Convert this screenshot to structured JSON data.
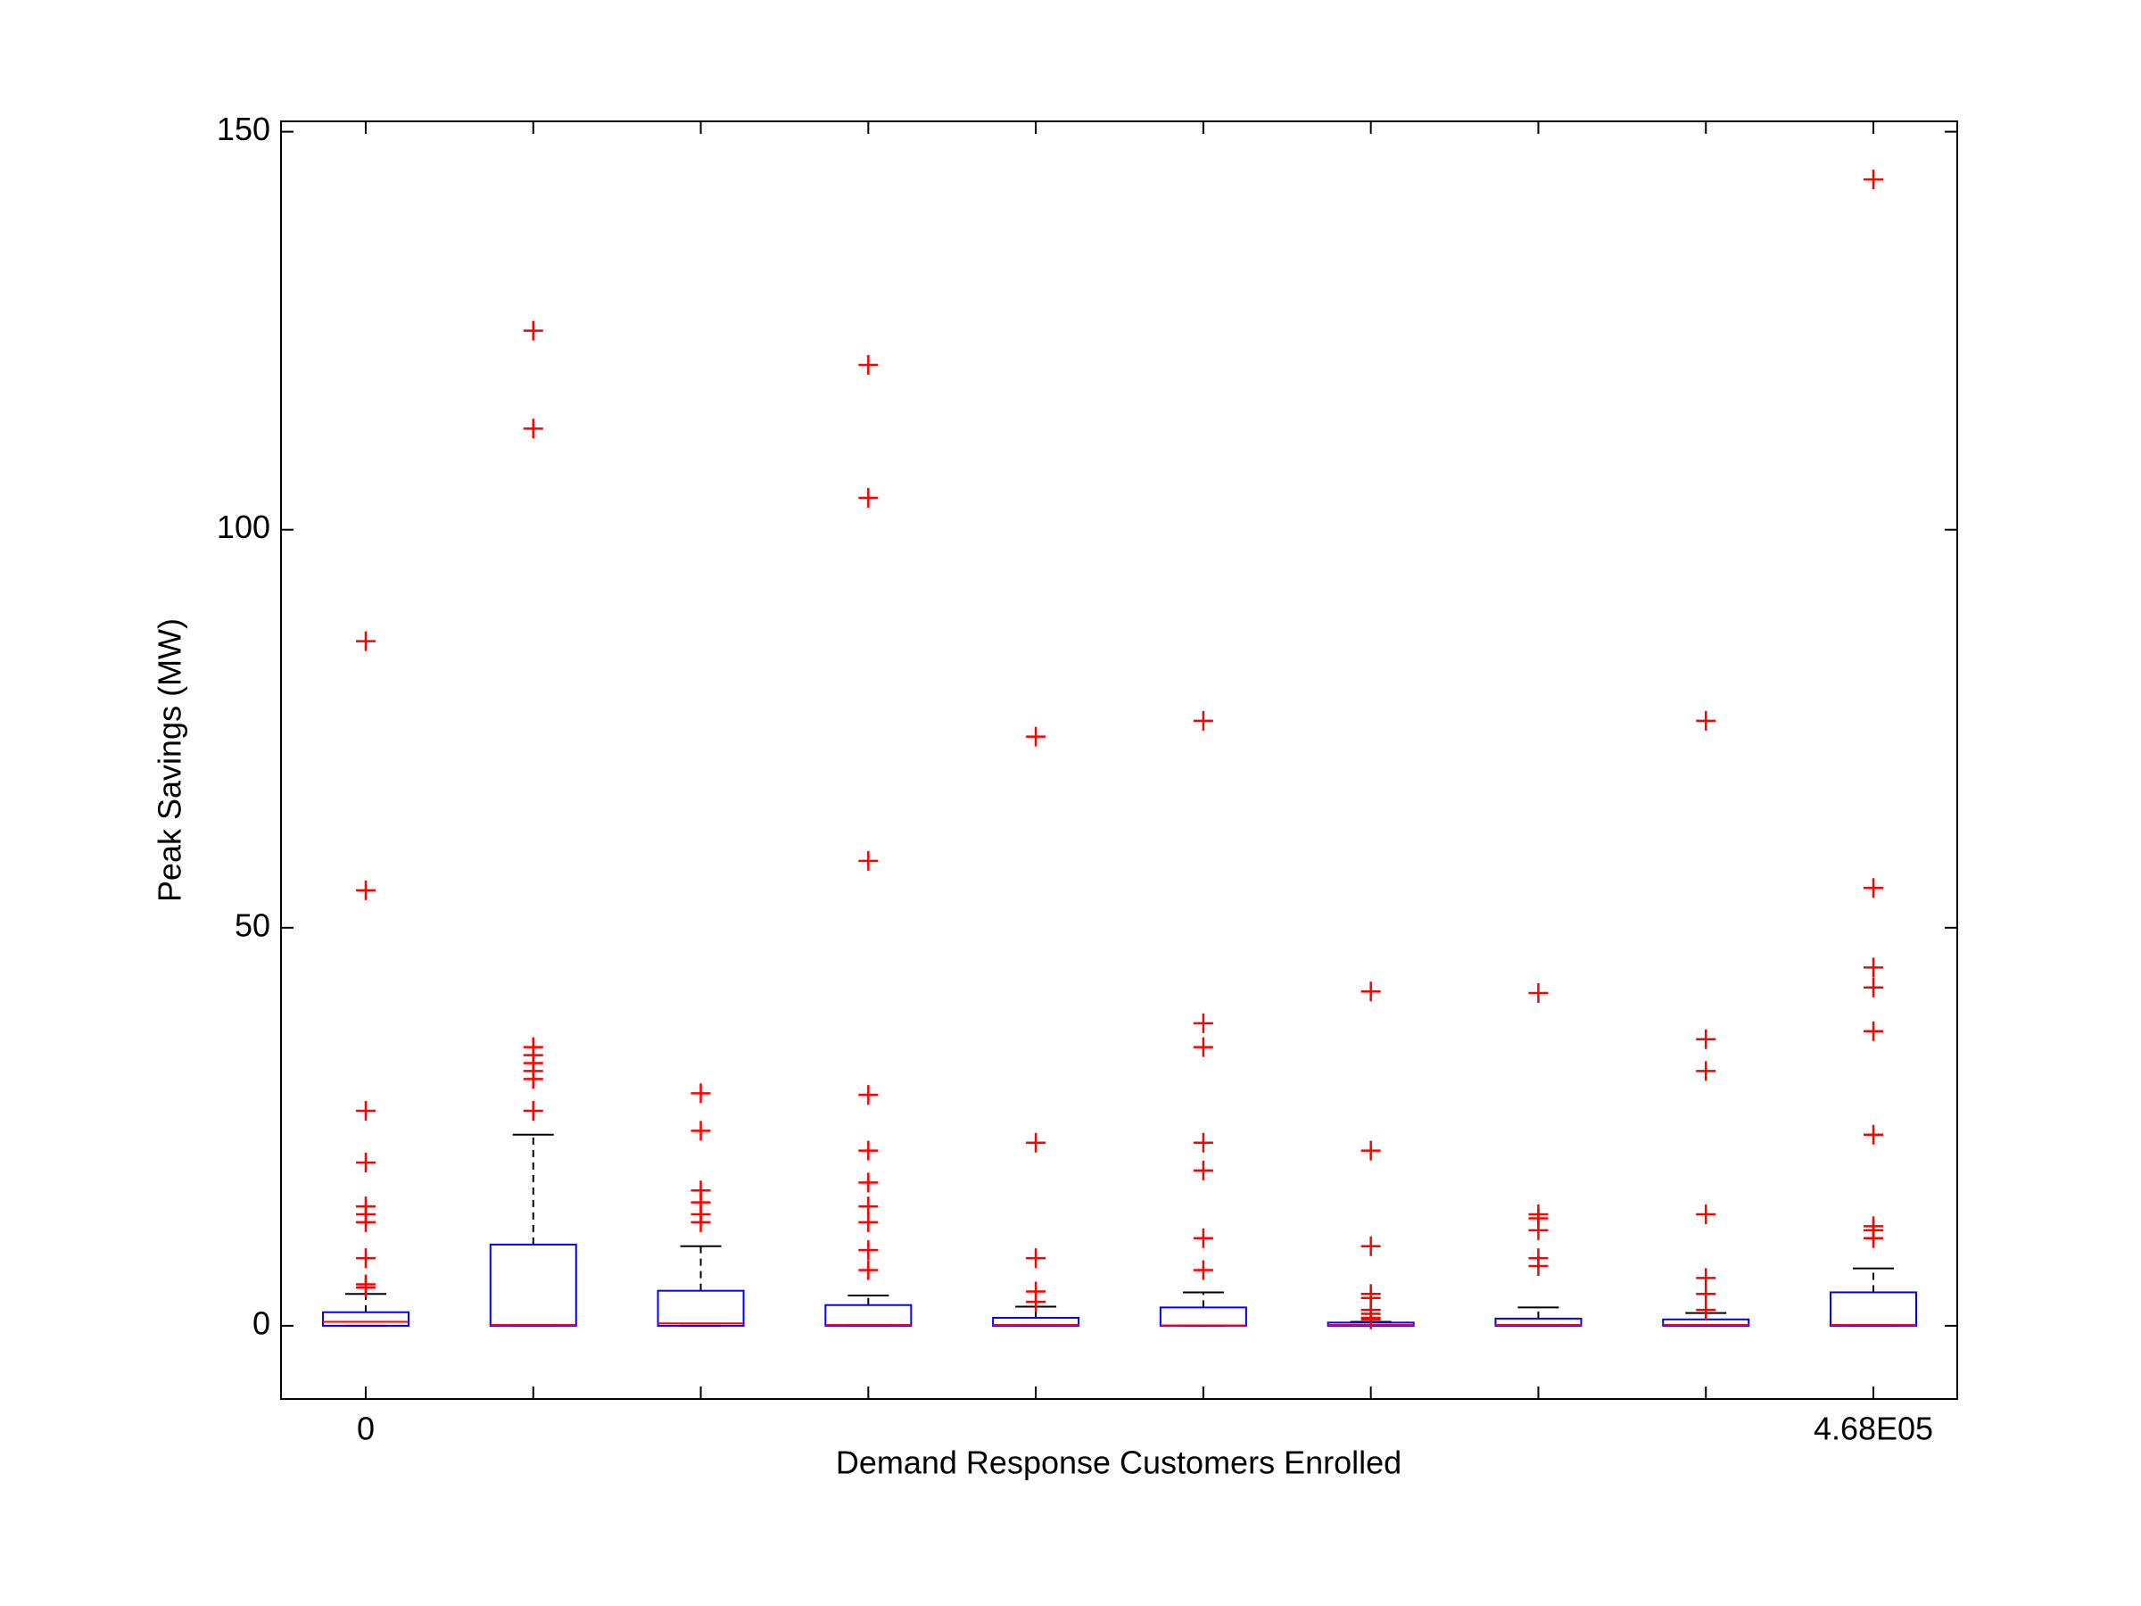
{
  "chart_data": {
    "type": "box",
    "x_label": "Demand Response Customers Enrolled",
    "y_label": "Peak Savings (MW)",
    "categories": [
      "0",
      null,
      null,
      null,
      null,
      null,
      null,
      null,
      null,
      "4.68E05"
    ],
    "ylim": [
      -9.2,
      151.3
    ],
    "yticks": [
      0,
      50,
      100,
      150
    ],
    "box_color": "#0000ff",
    "median_color": "#ff0000",
    "whisker_color": "#000000",
    "outlier_color": "#ff0000",
    "boxes": [
      {
        "whisker_low": 0,
        "q1": 0,
        "median": 0.5,
        "q3": 1.7,
        "whisker_high": 4,
        "outliers": [
          86,
          54.7,
          27,
          20.5,
          15,
          14,
          13,
          8.5,
          5.2,
          4.8
        ]
      },
      {
        "whisker_low": 0,
        "q1": 0,
        "median": 0.1,
        "q3": 10.2,
        "whisker_high": 24,
        "outliers": [
          125,
          112.7,
          35,
          34,
          33,
          32,
          31,
          27
        ]
      },
      {
        "whisker_low": 0,
        "q1": 0,
        "median": 0.3,
        "q3": 4.4,
        "whisker_high": 10,
        "outliers": [
          29.2,
          24.5,
          17,
          15.5,
          14,
          13
        ]
      },
      {
        "whisker_low": 0,
        "q1": 0,
        "median": 0.1,
        "q3": 2.6,
        "whisker_high": 3.8,
        "outliers": [
          120.7,
          104,
          58.4,
          29,
          22,
          18,
          15,
          13,
          9.5,
          7
        ]
      },
      {
        "whisker_low": 0,
        "q1": 0,
        "median": 0.1,
        "q3": 1,
        "whisker_high": 2.4,
        "outliers": [
          74,
          23,
          8.5,
          4.3,
          3
        ]
      },
      {
        "whisker_low": 0,
        "q1": 0,
        "median": 0.05,
        "q3": 2.3,
        "whisker_high": 4.2,
        "outliers": [
          76,
          38,
          35,
          23,
          19.5,
          11,
          7
        ]
      },
      {
        "whisker_low": 0,
        "q1": 0,
        "median": 0.1,
        "q3": 0.4,
        "whisker_high": 0.5,
        "outliers": [
          42,
          22,
          10,
          4,
          3.5,
          2,
          1.5,
          1,
          0.8
        ]
      },
      {
        "whisker_low": 0,
        "q1": 0,
        "median": 0.1,
        "q3": 0.9,
        "whisker_high": 2.3,
        "outliers": [
          41.8,
          14,
          13.5,
          12,
          8.5,
          7.5
        ]
      },
      {
        "whisker_low": 0,
        "q1": 0,
        "median": 0.1,
        "q3": 0.8,
        "whisker_high": 1.6,
        "outliers": [
          76,
          36,
          32,
          14,
          6,
          4,
          2
        ]
      },
      {
        "whisker_low": 0,
        "q1": 0,
        "median": 0.1,
        "q3": 4.2,
        "whisker_high": 7.2,
        "outliers": [
          144,
          55,
          45,
          42.5,
          37,
          24,
          12.5,
          12,
          11
        ]
      }
    ]
  }
}
